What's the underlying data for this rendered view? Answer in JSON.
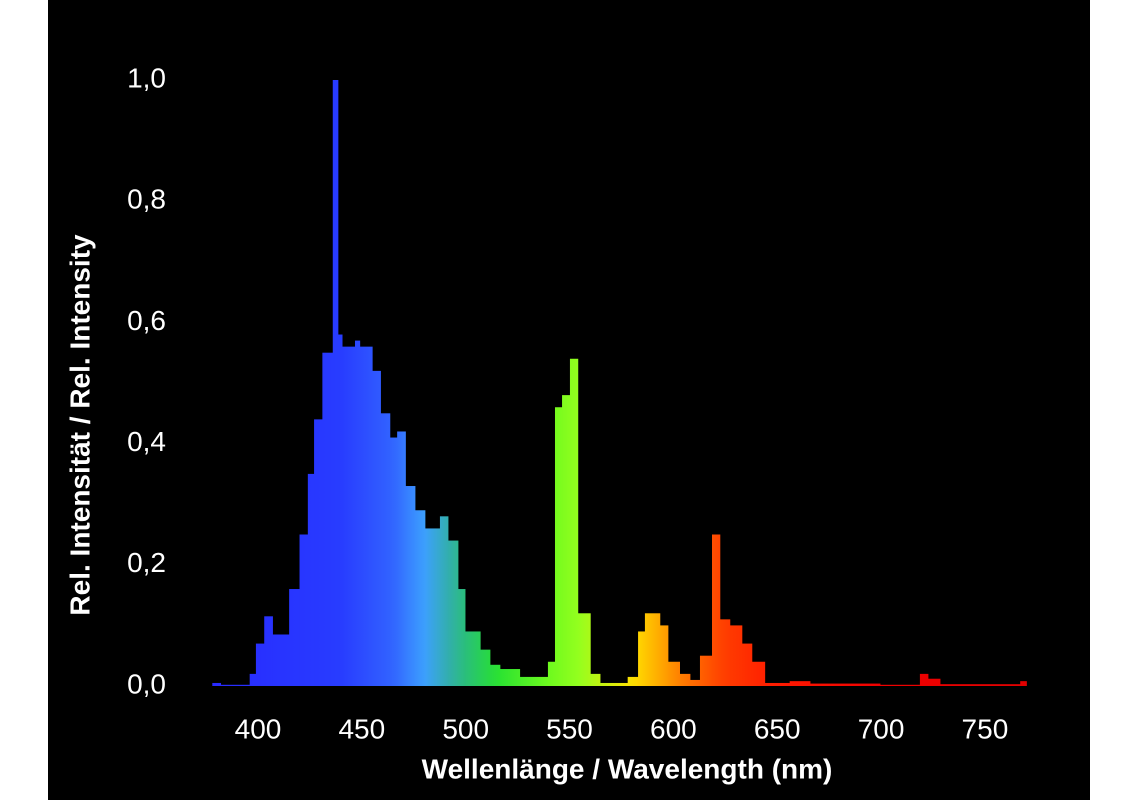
{
  "chart_data": {
    "type": "histogram",
    "x_label": "Wellenlänge / Wavelength (nm)",
    "y_label": "Rel. Intensität / Rel. Intensity",
    "bins": [
      378,
      382,
      396,
      399,
      403,
      407,
      415,
      420,
      424,
      427,
      431,
      436,
      438.5,
      440.5,
      446.7,
      449,
      455,
      459,
      463.5,
      467,
      471,
      475.6,
      480.4,
      487.6,
      491.5,
      496.3,
      499.7,
      507,
      511.7,
      516.5,
      526,
      539.6,
      543,
      546.4,
      550.2,
      554,
      560,
      564.7,
      578,
      583,
      586.3,
      593.5,
      597.4,
      603,
      608,
      612.8,
      618.6,
      622.4,
      627.2,
      633,
      637.8,
      644,
      656,
      665.8,
      699.5,
      718.7,
      722.6,
      728.4,
      767,
      770
    ],
    "values": [
      0.005,
      0.002,
      0.02,
      0.07,
      0.115,
      0.085,
      0.16,
      0.25,
      0.35,
      0.44,
      0.55,
      1.0,
      0.58,
      0.56,
      0.57,
      0.56,
      0.52,
      0.45,
      0.41,
      0.42,
      0.33,
      0.29,
      0.26,
      0.28,
      0.24,
      0.16,
      0.09,
      0.06,
      0.035,
      0.028,
      0.015,
      0.04,
      0.46,
      0.48,
      0.54,
      0.12,
      0.02,
      0.005,
      0.015,
      0.09,
      0.12,
      0.1,
      0.04,
      0.02,
      0.01,
      0.05,
      0.25,
      0.11,
      0.1,
      0.07,
      0.04,
      0.005,
      0.008,
      0.004,
      0.002,
      0.02,
      0.012,
      0.003,
      0.008
    ],
    "color": "wavelength",
    "xlim": [
      378,
      772
    ],
    "ylim": [
      0,
      1
    ],
    "xticks": [
      400,
      450,
      500,
      550,
      600,
      650,
      700,
      750
    ],
    "yticks": [
      {
        "value": 0,
        "label": "0,0"
      },
      {
        "value": 0.2,
        "label": "0,2"
      },
      {
        "value": 0.4,
        "label": "0,4"
      },
      {
        "value": 0.6,
        "label": "0,6"
      },
      {
        "value": 0.8,
        "label": "0,8"
      },
      {
        "value": 1,
        "label": "1,0"
      }
    ]
  }
}
